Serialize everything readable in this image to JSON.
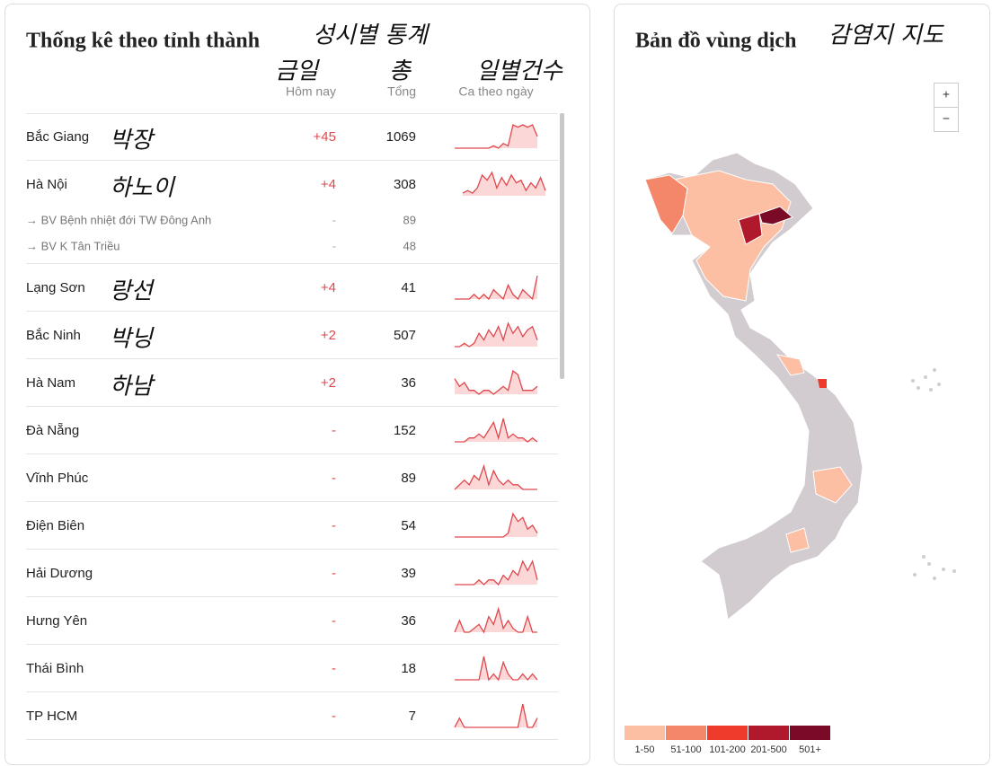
{
  "stats": {
    "title": "Thống kê theo tỉnh thành",
    "title_note": "성시별 통계",
    "columns": [
      {
        "label": "Hôm nay",
        "note": "금일"
      },
      {
        "label": "Tổng",
        "note": "총"
      },
      {
        "label": "Ca theo ngày",
        "note": "일별건수"
      }
    ],
    "rows": [
      {
        "name": "Bắc Giang",
        "note": "박장",
        "today": "+45",
        "total": 1069,
        "trend": [
          0,
          0,
          0,
          0,
          0,
          0,
          0,
          0,
          1,
          0,
          2,
          1,
          10,
          9,
          10,
          9,
          10,
          5
        ]
      },
      {
        "name": "Hà Nội",
        "note": "하노이",
        "today": "+4",
        "total": 308,
        "trend": [
          1,
          2,
          1,
          3,
          8,
          6,
          9,
          3,
          7,
          4,
          8,
          5,
          6,
          2,
          5,
          3,
          7,
          2
        ],
        "subrows": [
          {
            "name": "→ BV Bệnh nhiệt đới TW Đông Anh",
            "today": "-",
            "total": 89
          },
          {
            "name": "→ BV K Tân Triều",
            "today": "-",
            "total": 48
          }
        ]
      },
      {
        "name": "Lạng Sơn",
        "note": "랑선",
        "today": "+4",
        "total": 41,
        "trend": [
          0,
          0,
          0,
          0,
          1,
          0,
          1,
          0,
          2,
          1,
          0,
          3,
          1,
          0,
          2,
          1,
          0,
          5
        ]
      },
      {
        "name": "Bắc Ninh",
        "note": "박닝",
        "today": "+2",
        "total": 507,
        "trend": [
          0,
          0,
          1,
          0,
          1,
          4,
          2,
          5,
          3,
          6,
          2,
          7,
          4,
          6,
          3,
          5,
          6,
          2
        ]
      },
      {
        "name": "Hà Nam",
        "note": "하남",
        "today": "+2",
        "total": 36,
        "trend": [
          4,
          2,
          3,
          1,
          1,
          0,
          1,
          1,
          0,
          1,
          2,
          1,
          6,
          5,
          1,
          1,
          1,
          2
        ]
      },
      {
        "name": "Đà Nẵng",
        "today": "-",
        "total": 152,
        "trend": [
          0,
          0,
          0,
          1,
          1,
          2,
          1,
          3,
          5,
          1,
          6,
          1,
          2,
          1,
          1,
          0,
          1,
          0
        ]
      },
      {
        "name": "Vĩnh Phúc",
        "today": "-",
        "total": 89,
        "trend": [
          0,
          1,
          2,
          1,
          3,
          2,
          5,
          1,
          4,
          2,
          1,
          2,
          1,
          1,
          0,
          0,
          0,
          0
        ]
      },
      {
        "name": "Điện Biên",
        "today": "-",
        "total": 54,
        "trend": [
          0,
          0,
          0,
          0,
          0,
          0,
          0,
          0,
          0,
          0,
          0,
          1,
          6,
          4,
          5,
          2,
          3,
          1
        ]
      },
      {
        "name": "Hải Dương",
        "today": "-",
        "total": 39,
        "trend": [
          0,
          0,
          0,
          0,
          0,
          1,
          0,
          1,
          1,
          0,
          2,
          1,
          3,
          2,
          5,
          3,
          5,
          1
        ]
      },
      {
        "name": "Hưng Yên",
        "today": "-",
        "total": 36,
        "trend": [
          0,
          3,
          0,
          0,
          1,
          2,
          0,
          4,
          2,
          6,
          1,
          3,
          1,
          0,
          0,
          4,
          0,
          0
        ]
      },
      {
        "name": "Thái Bình",
        "today": "-",
        "total": 18,
        "trend": [
          0,
          0,
          0,
          0,
          0,
          0,
          4,
          0,
          1,
          0,
          3,
          1,
          0,
          0,
          1,
          0,
          1,
          0
        ]
      },
      {
        "name": "TP HCM",
        "today": "-",
        "total": 7,
        "trend": [
          0,
          2,
          0,
          0,
          0,
          0,
          0,
          0,
          0,
          0,
          0,
          0,
          0,
          0,
          5,
          0,
          0,
          2
        ]
      }
    ]
  },
  "map": {
    "title": "Bản đồ vùng dịch",
    "title_note": "감염지 지도",
    "zoom_in": "+",
    "zoom_out": "−",
    "legend": [
      {
        "label": "1-50",
        "color": "#fcbfa4"
      },
      {
        "label": "51-100",
        "color": "#f4876a"
      },
      {
        "label": "101-200",
        "color": "#ef3b2c"
      },
      {
        "label": "201-500",
        "color": "#b0182c"
      },
      {
        "label": "501+",
        "color": "#7a0a26"
      }
    ]
  }
}
